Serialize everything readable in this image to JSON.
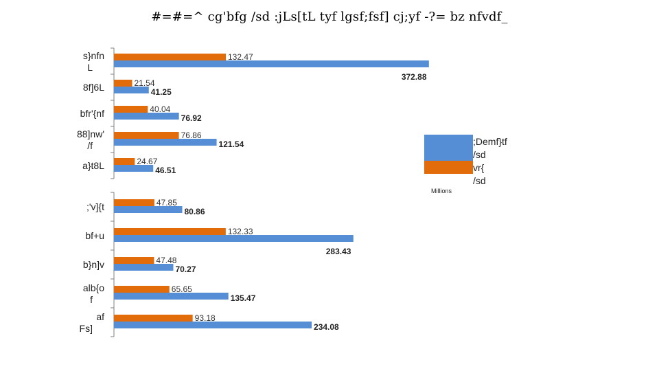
{
  "chart_data": {
    "type": "bar",
    "orientation": "horizontal",
    "title": "#=#=^ cg'bfg /sd :jLs[tL tyf lgsf;fsf] cj;yf -?= bz nfvdf_",
    "units_label": "Millions",
    "categories": [
      "s}nfn L",
      "8f]6L",
      "bfr'{nf",
      "88]nw' /f",
      "a}t8L",
      ";'v]{t",
      "bf+u",
      "b}n]v",
      "alb{o f",
      "af Fs]"
    ],
    "series": [
      {
        "name": "vr{ /sd",
        "color": "#E26B0A",
        "values": [
          132.47,
          21.54,
          40.04,
          76.86,
          24.67,
          47.85,
          132.33,
          47.48,
          65.65,
          93.18
        ]
      },
      {
        "name": ";Demf}tf /sd",
        "color": "#558ED5",
        "values": [
          372.88,
          41.25,
          76.92,
          121.54,
          46.51,
          80.86,
          283.43,
          70.27,
          135.47,
          234.08
        ]
      }
    ],
    "legend_position": "right",
    "gridlines": false
  }
}
